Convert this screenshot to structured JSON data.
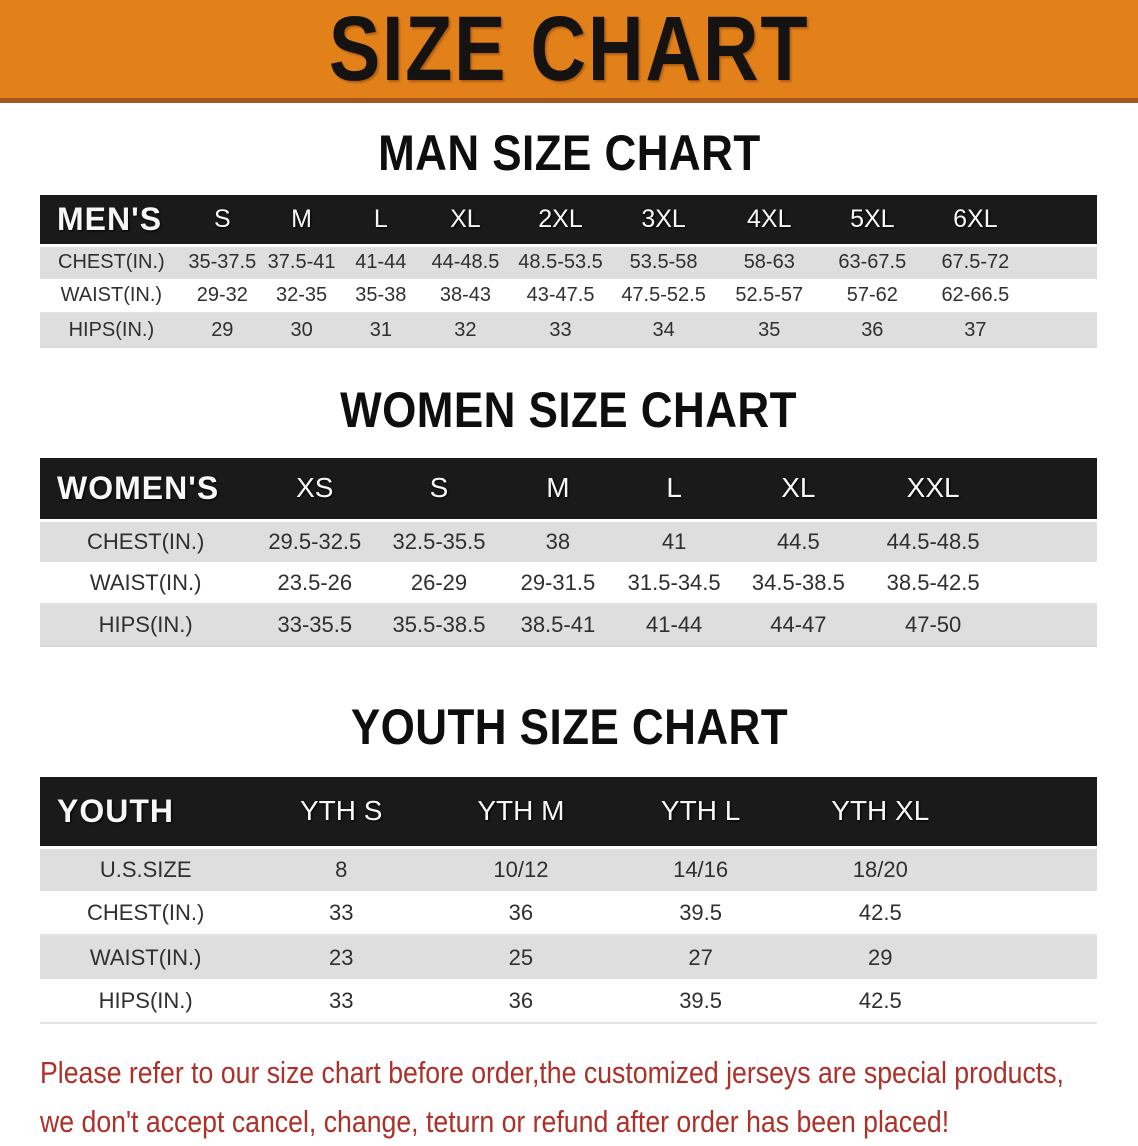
{
  "banner": {
    "title": "SIZE CHART",
    "bg_color": "#E2801A",
    "border_color": "#A4571B"
  },
  "sections": [
    {
      "heading": "MAN SIZE CHART",
      "header_label": "MEN'S",
      "columns": [
        "S",
        "M",
        "L",
        "XL",
        "2XL",
        "3XL",
        "4XL",
        "5XL",
        "6XL"
      ],
      "rows": [
        {
          "label": "CHEST(IN.)",
          "values": [
            "35-37.5",
            "37.5-41",
            "41-44",
            "44-48.5",
            "48.5-53.5",
            "53.5-58",
            "58-63",
            "63-67.5",
            "67.5-72"
          ]
        },
        {
          "label": "WAIST(IN.)",
          "values": [
            "29-32",
            "32-35",
            "35-38",
            "38-43",
            "43-47.5",
            "47.5-52.5",
            "52.5-57",
            "57-62",
            "62-66.5"
          ]
        },
        {
          "label": "HIPS(IN.)",
          "values": [
            "29",
            "30",
            "31",
            "32",
            "33",
            "34",
            "35",
            "36",
            "37"
          ]
        }
      ]
    },
    {
      "heading": "WOMEN SIZE CHART",
      "header_label": "WOMEN'S",
      "columns": [
        "XS",
        "S",
        "M",
        "L",
        "XL",
        "XXL"
      ],
      "rows": [
        {
          "label": "CHEST(IN.)",
          "values": [
            "29.5-32.5",
            "32.5-35.5",
            "38",
            "41",
            "44.5",
            "44.5-48.5"
          ]
        },
        {
          "label": "WAIST(IN.)",
          "values": [
            "23.5-26",
            "26-29",
            "29-31.5",
            "31.5-34.5",
            "34.5-38.5",
            "38.5-42.5"
          ]
        },
        {
          "label": "HIPS(IN.)",
          "values": [
            "33-35.5",
            "35.5-38.5",
            "38.5-41",
            "41-44",
            "44-47",
            "47-50"
          ]
        }
      ]
    },
    {
      "heading": "YOUTH SIZE CHART",
      "header_label": "YOUTH",
      "columns": [
        "YTH S",
        "YTH M",
        "YTH L",
        "YTH XL"
      ],
      "rows": [
        {
          "label": "U.S.SIZE",
          "values": [
            "8",
            "10/12",
            "14/16",
            "18/20"
          ]
        },
        {
          "label": "CHEST(IN.)",
          "values": [
            "33",
            "36",
            "39.5",
            "42.5"
          ]
        },
        {
          "label": "WAIST(IN.)",
          "values": [
            "23",
            "25",
            "27",
            "29"
          ]
        },
        {
          "label": "HIPS(IN.)",
          "values": [
            "33",
            "36",
            "39.5",
            "42.5"
          ]
        }
      ]
    }
  ],
  "note": {
    "line1": "Please refer to our size chart before order,the customized jerseys are special products,",
    "line2": "we don't accept cancel, change, teturn or refund after order has been placed!",
    "color": "#AE3129"
  }
}
